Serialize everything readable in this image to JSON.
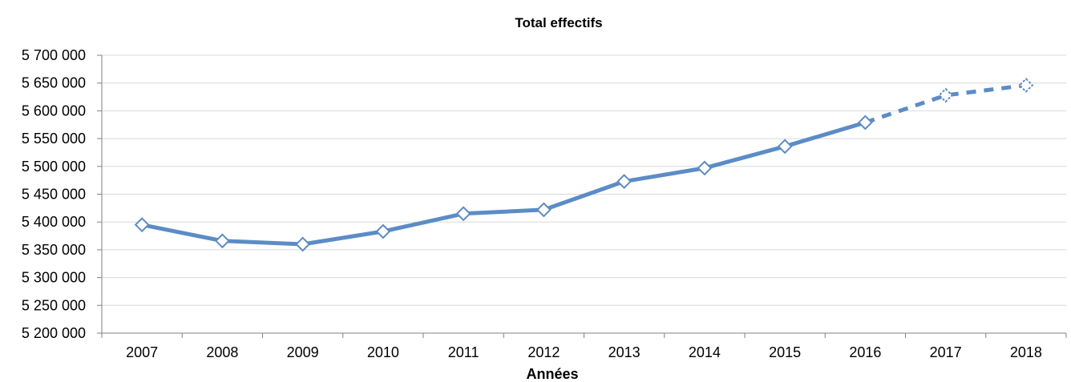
{
  "chart_data": {
    "type": "line",
    "title": "Total effectifs",
    "xlabel": "Années",
    "ylabel": "",
    "categories": [
      "2007",
      "2008",
      "2009",
      "2010",
      "2011",
      "2012",
      "2013",
      "2014",
      "2015",
      "2016",
      "2017",
      "2018"
    ],
    "ylim": [
      5200000,
      5700000
    ],
    "yticks": [
      5200000,
      5250000,
      5300000,
      5350000,
      5400000,
      5450000,
      5500000,
      5550000,
      5600000,
      5650000,
      5700000
    ],
    "ytick_labels": [
      "5 200 000",
      "5 250 000",
      "5 300 000",
      "5 350 000",
      "5 400 000",
      "5 450 000",
      "5 500 000",
      "5 550 000",
      "5 600 000",
      "5 650 000",
      "5 700 000"
    ],
    "grid": true,
    "legend": "none",
    "series": [
      {
        "values": [
          5395000,
          5366000,
          5360000,
          5383000,
          5415000,
          5422000,
          5473000,
          5497000,
          5536000,
          5579000,
          5628000,
          5646000
        ],
        "style_segments": [
          {
            "from": "2007",
            "to": "2016",
            "line": "solid"
          },
          {
            "from": "2016",
            "to": "2018",
            "line": "dashed"
          }
        ],
        "marker": "diamond",
        "marker_style": {
          "2017": "dashed",
          "2018": "dashed"
        },
        "color": "#5B8CC6"
      }
    ]
  },
  "colors": {
    "line": "#5B8CC6",
    "grid": "#D9D9D9",
    "axis": "#808080",
    "marker_fill": "#FFFFFF"
  }
}
